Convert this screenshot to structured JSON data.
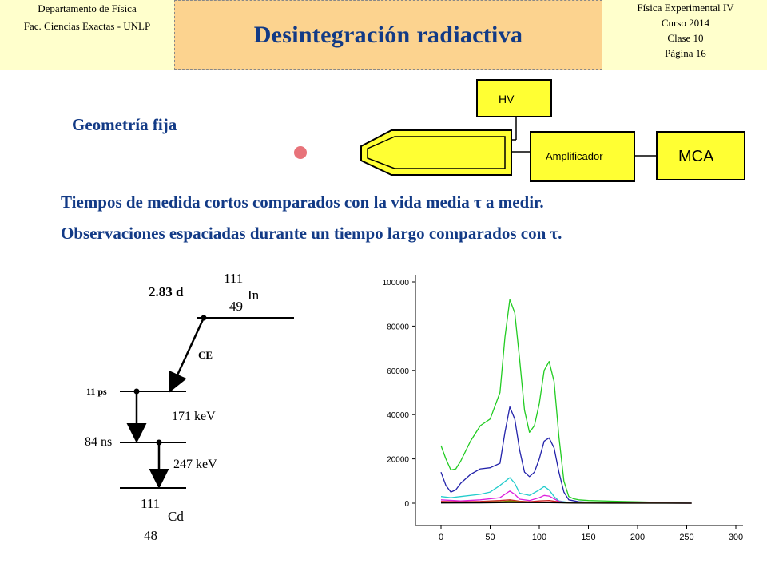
{
  "header": {
    "left": [
      "Departamento de Física",
      "Fac. Ciencias Exactas - UNLP"
    ],
    "title": "Desintegración radiactiva",
    "right": [
      "Física Experimental IV",
      "Curso 2014",
      "Clase 10",
      "Página 16"
    ]
  },
  "subtitle": "Geometría fija",
  "setup": {
    "hv": "HV",
    "amp": "Amplificador",
    "mca": "MCA"
  },
  "text_lines": [
    "Tiempos de medida cortos comparados  con la vida media τ a medir.",
    "Observaciones espaciadas durante un tiempo  largo comparados con τ."
  ],
  "decay": {
    "parent_A": "111",
    "parent_sym": "In",
    "parent_Z": "49",
    "parent_halflife": "2.83 d",
    "ce": "CE",
    "level1_life": "11 ps",
    "level1_energy": "171 keV",
    "level2_life": "84 ns",
    "level2_energy": "247 keV",
    "daughter_A": "111",
    "daughter_sym": "Cd",
    "daughter_Z": "48"
  },
  "chart_data": {
    "type": "line",
    "xlim": [
      0,
      300
    ],
    "ylim": [
      0,
      100000
    ],
    "xticks": [
      0,
      50,
      100,
      150,
      200,
      250,
      300
    ],
    "yticks": [
      0,
      20000,
      40000,
      60000,
      80000,
      100000
    ],
    "grid": false,
    "series": [
      {
        "color": "#22cc22",
        "x": [
          0,
          5,
          10,
          15,
          20,
          30,
          40,
          50,
          60,
          65,
          70,
          75,
          80,
          85,
          90,
          95,
          100,
          105,
          110,
          115,
          120,
          125,
          130,
          135,
          140,
          150,
          200,
          255
        ],
        "y": [
          26000,
          20000,
          15000,
          15500,
          19000,
          28000,
          35000,
          38000,
          50000,
          75000,
          92000,
          86000,
          65000,
          42000,
          32000,
          35000,
          45000,
          60000,
          64000,
          55000,
          30000,
          10000,
          3000,
          2000,
          1500,
          1200,
          600,
          0
        ]
      },
      {
        "color": "#2222aa",
        "x": [
          0,
          5,
          10,
          15,
          20,
          30,
          40,
          50,
          60,
          65,
          70,
          75,
          80,
          85,
          90,
          95,
          100,
          105,
          110,
          115,
          120,
          125,
          130,
          140,
          160,
          255
        ],
        "y": [
          14000,
          8000,
          5000,
          6000,
          9000,
          13000,
          15500,
          16000,
          18000,
          32000,
          43500,
          38000,
          24000,
          14000,
          12000,
          14000,
          20000,
          28000,
          29500,
          25000,
          14000,
          5000,
          1500,
          700,
          200,
          0
        ]
      },
      {
        "color": "#22cccc",
        "x": [
          0,
          10,
          20,
          40,
          50,
          60,
          70,
          75,
          80,
          90,
          100,
          105,
          110,
          115,
          120,
          130,
          160,
          255
        ],
        "y": [
          3000,
          2500,
          3000,
          4000,
          5000,
          8000,
          11500,
          9000,
          4500,
          3500,
          6000,
          7500,
          6000,
          3000,
          1000,
          300,
          100,
          0
        ]
      },
      {
        "color": "#dd22dd",
        "x": [
          0,
          20,
          40,
          60,
          70,
          75,
          80,
          90,
          100,
          105,
          110,
          115,
          120,
          130,
          255
        ],
        "y": [
          1500,
          1000,
          1500,
          2500,
          5500,
          4000,
          1800,
          1200,
          2500,
          3500,
          3200,
          2000,
          800,
          200,
          0
        ]
      },
      {
        "color": "#cc2222",
        "x": [
          0,
          20,
          40,
          60,
          70,
          80,
          90,
          100,
          110,
          120,
          130,
          255
        ],
        "y": [
          800,
          600,
          800,
          1200,
          1500,
          900,
          700,
          1000,
          1200,
          600,
          200,
          0
        ]
      },
      {
        "color": "#777700",
        "x": [
          0,
          20,
          40,
          60,
          70,
          80,
          100,
          110,
          120,
          130,
          255
        ],
        "y": [
          300,
          300,
          500,
          700,
          1000,
          600,
          400,
          500,
          300,
          100,
          0
        ]
      },
      {
        "color": "#000000",
        "x": [
          0,
          40,
          70,
          110,
          140,
          255
        ],
        "y": [
          100,
          150,
          300,
          200,
          50,
          0
        ]
      }
    ]
  }
}
